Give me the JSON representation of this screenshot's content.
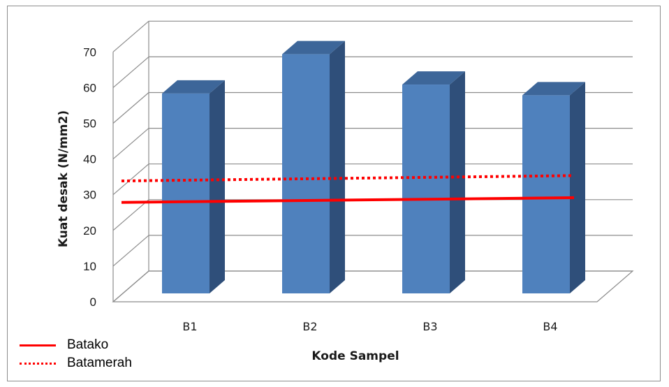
{
  "chart_data": {
    "type": "bar",
    "style": "3d-clustered-column",
    "categories": [
      "B1",
      "B2",
      "B3",
      "B4"
    ],
    "series": [
      {
        "values": [
          56,
          67,
          58.5,
          55.5
        ],
        "color": "#4f81bd"
      }
    ],
    "reference_lines": [
      {
        "name": "Batako",
        "style": "solid",
        "color": "#ff0000",
        "values": [
          25.5,
          26.8
        ]
      },
      {
        "name": "Batamerah",
        "style": "dotted",
        "color": "#ff0000",
        "values": [
          31.5,
          33
        ]
      }
    ],
    "xlabel": "Kode Sampel",
    "ylabel": "Kuat desak (N/mm2)",
    "ylim": [
      0,
      70
    ],
    "yticks": [
      "0",
      "10",
      "20",
      "30",
      "40",
      "50",
      "60",
      "70"
    ],
    "grid": true,
    "legend_position": "bottom-left"
  },
  "legend": {
    "items": [
      {
        "label": "Batako",
        "style": "solid"
      },
      {
        "label": "Batamerah",
        "style": "dotted"
      }
    ]
  }
}
